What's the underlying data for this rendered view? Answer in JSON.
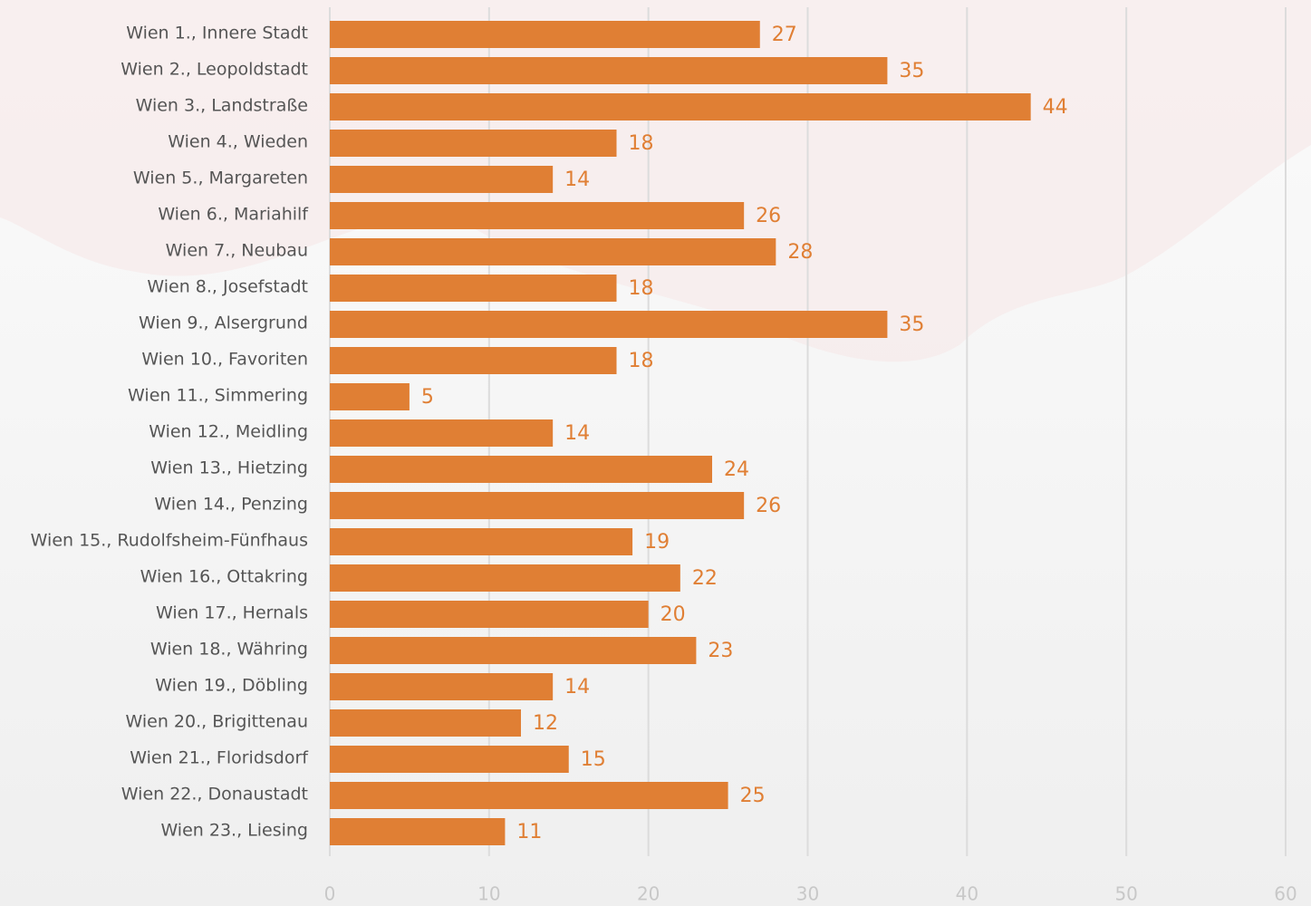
{
  "chart_data": {
    "type": "bar",
    "orientation": "horizontal",
    "categories": [
      "Wien 1., Innere Stadt",
      "Wien 2., Leopoldstadt",
      "Wien 3., Landstraße",
      "Wien 4., Wieden",
      "Wien 5., Margareten",
      "Wien 6., Mariahilf",
      "Wien 7., Neubau",
      "Wien 8., Josefstadt",
      "Wien 9., Alsergrund",
      "Wien 10., Favoriten",
      "Wien 11., Simmering",
      "Wien 12., Meidling",
      "Wien 13., Hietzing",
      "Wien 14., Penzing",
      "Wien 15., Rudolfsheim-Fünfhaus",
      "Wien 16., Ottakring",
      "Wien 17., Hernals",
      "Wien 18., Währing",
      "Wien 19., Döbling",
      "Wien 20., Brigittenau",
      "Wien 21., Floridsdorf",
      "Wien 22., Donaustadt",
      "Wien 23., Liesing"
    ],
    "values": [
      27,
      35,
      44,
      18,
      14,
      26,
      28,
      18,
      35,
      18,
      5,
      14,
      24,
      26,
      19,
      22,
      20,
      23,
      14,
      12,
      15,
      25,
      11
    ],
    "color": "#e07f34",
    "xlim": [
      0,
      60
    ],
    "xticks": [
      0,
      10,
      20,
      30,
      40,
      50,
      60
    ],
    "grid": true
  }
}
